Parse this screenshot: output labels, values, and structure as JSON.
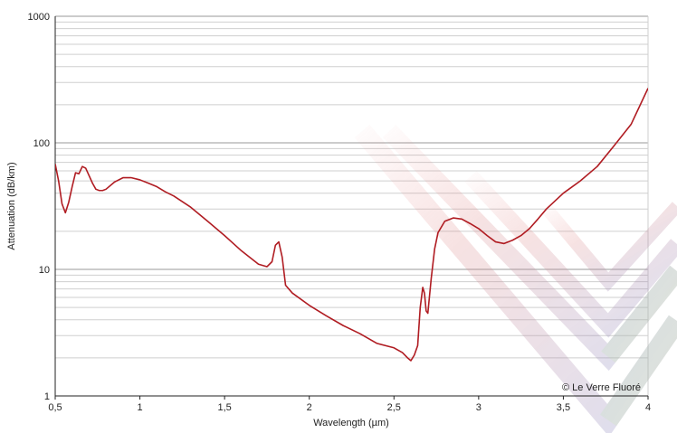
{
  "chart_data": {
    "type": "line",
    "xlabel": "Wavelength (µm)",
    "ylabel": "Attenuation (dB/km)",
    "xlim": [
      0.5,
      4
    ],
    "ylim": [
      1,
      1000
    ],
    "yscale": "log",
    "grid": true,
    "x_tick_labels": [
      "0,5",
      "1",
      "1,5",
      "2",
      "2,5",
      "3",
      "3,5",
      "4"
    ],
    "y_tick_labels": [
      "1",
      "10",
      "100",
      "1000"
    ],
    "annotation": "© Le Verre Fluoré",
    "line_color": "#b01c22",
    "series": [
      {
        "x": [
          0.5,
          0.52,
          0.54,
          0.56,
          0.58,
          0.6,
          0.62,
          0.64,
          0.66,
          0.68,
          0.7,
          0.72,
          0.74,
          0.76,
          0.78,
          0.8,
          0.85,
          0.9,
          0.95,
          1.0,
          1.05,
          1.1,
          1.15,
          1.2,
          1.3,
          1.4,
          1.5,
          1.6,
          1.7,
          1.75,
          1.78,
          1.8,
          1.82,
          1.84,
          1.86,
          1.9,
          2.0,
          2.1,
          2.2,
          2.3,
          2.4,
          2.5,
          2.55,
          2.58,
          2.6,
          2.62,
          2.64,
          2.655,
          2.67,
          2.68,
          2.69,
          2.7,
          2.72,
          2.74,
          2.76,
          2.8,
          2.85,
          2.9,
          2.95,
          3.0,
          3.05,
          3.1,
          3.15,
          3.2,
          3.25,
          3.3,
          3.35,
          3.4,
          3.5,
          3.6,
          3.7,
          3.8,
          3.9,
          4.0
        ],
        "y": [
          68,
          50,
          33,
          28,
          34,
          45,
          58,
          57,
          65,
          63,
          55,
          48,
          43,
          42,
          42,
          43,
          49,
          53,
          53,
          51,
          48,
          45,
          41,
          38,
          31,
          24,
          18.5,
          14,
          11,
          10.5,
          11.5,
          15.5,
          16.5,
          12.5,
          7.5,
          6.5,
          5.2,
          4.3,
          3.6,
          3.1,
          2.6,
          2.4,
          2.2,
          2.0,
          1.9,
          2.1,
          2.5,
          5.0,
          7.2,
          6.5,
          4.7,
          4.5,
          8.5,
          14.5,
          19.5,
          24,
          25.5,
          25,
          23,
          21,
          18.5,
          16.5,
          16,
          17,
          18.5,
          21,
          25,
          30,
          40,
          50,
          65,
          95,
          140,
          270
        ]
      }
    ]
  }
}
